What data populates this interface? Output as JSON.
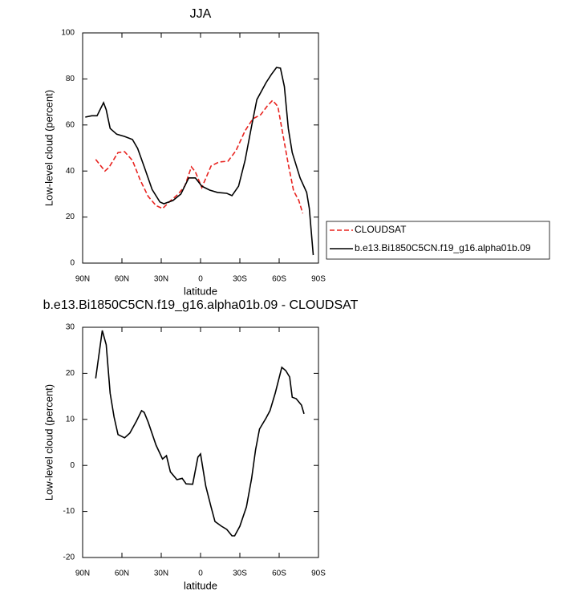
{
  "chart_data": [
    {
      "type": "line",
      "title": "JJA",
      "xlabel": "latitude",
      "ylabel": "Low-level cloud (percent)",
      "xlim": [
        90,
        -90
      ],
      "xticks": [
        {
          "value": 90,
          "label": "90N"
        },
        {
          "value": 60,
          "label": "60N"
        },
        {
          "value": 30,
          "label": "30N"
        },
        0,
        {
          "value": -30,
          "label": "30S"
        },
        {
          "value": -60,
          "label": "60S"
        },
        {
          "value": -90,
          "label": "90S"
        }
      ],
      "ylim": [
        0,
        100
      ],
      "yticks": [
        0,
        20,
        40,
        60,
        80,
        100
      ],
      "legend": "outside-lower-right",
      "series": [
        {
          "name": "CLOUDSAT",
          "color": "#e8231f",
          "style": "dashed",
          "x": [
            80,
            73,
            70,
            63,
            58,
            52,
            46,
            40,
            34,
            29,
            23,
            17,
            12,
            7,
            4,
            -1,
            -8,
            -14,
            -21,
            -27,
            -34,
            -40,
            -46,
            -51,
            -55,
            -59,
            -62,
            -67,
            -71,
            -75,
            -78
          ],
          "values": [
            45,
            40,
            41.5,
            48,
            48.4,
            44.6,
            36,
            29,
            25,
            23.7,
            27,
            30,
            33.5,
            41.8,
            39.7,
            32.8,
            42.2,
            43.9,
            44.3,
            48.8,
            57.5,
            62.7,
            64.5,
            68.3,
            70.7,
            68,
            58.5,
            42.9,
            31.4,
            27.2,
            21.6
          ]
        },
        {
          "name": "b.e13.Bi1850C5CN.f19_g16.alpha01b.09",
          "color": "#000000",
          "style": "solid",
          "x": [
            88,
            83,
            79,
            74,
            72,
            69,
            64,
            58,
            52,
            48,
            43,
            37,
            31,
            28,
            21,
            15,
            9,
            4,
            -1,
            -7,
            -13,
            -20,
            -24,
            -29,
            -34,
            -39,
            -43,
            -50,
            -54,
            -58,
            -61,
            -64,
            -67,
            -70,
            -76,
            -81,
            -83,
            -86
          ],
          "values": [
            63.4,
            64,
            64,
            69.7,
            66.6,
            58.5,
            56,
            55,
            53.7,
            49.8,
            41.8,
            32,
            26.5,
            25.8,
            27.2,
            30,
            37,
            37,
            33.4,
            31.7,
            30.7,
            30.3,
            29.3,
            33.4,
            44.6,
            59.6,
            71,
            78.4,
            81.9,
            85,
            84.7,
            76.7,
            58.5,
            48,
            37,
            30.7,
            23.7,
            3.5
          ]
        }
      ]
    },
    {
      "type": "line",
      "title": "b.e13.Bi1850C5CN.f19_g16.alpha01b.09 - CLOUDSAT",
      "xlabel": "latitude",
      "ylabel": "Low-level cloud (percent)",
      "xlim": [
        90,
        -90
      ],
      "xticks": [
        {
          "value": 90,
          "label": "90N"
        },
        {
          "value": 60,
          "label": "60N"
        },
        {
          "value": 30,
          "label": "30N"
        },
        0,
        {
          "value": -30,
          "label": "30S"
        },
        {
          "value": -60,
          "label": "60S"
        },
        {
          "value": -90,
          "label": "90S"
        }
      ],
      "ylim": [
        -20,
        30
      ],
      "yticks": [
        -20,
        -10,
        0,
        10,
        20,
        30
      ],
      "series": [
        {
          "color": "#000000",
          "style": "solid",
          "x": [
            80,
            75,
            72,
            69,
            66,
            63,
            58,
            54,
            49,
            45,
            43,
            40,
            34,
            29,
            26,
            23,
            18,
            14,
            11,
            6,
            2,
            0,
            -4,
            -8,
            -11,
            -16,
            -20,
            -24,
            -26,
            -30,
            -35,
            -39,
            -42,
            -45,
            -50,
            -53,
            -57,
            -62,
            -65,
            -68,
            -70,
            -73,
            -77,
            -79
          ],
          "values": [
            18.9,
            29.3,
            26.2,
            15.7,
            10.5,
            6.7,
            6,
            7,
            9.6,
            11.9,
            11.5,
            9.4,
            4.4,
            1.4,
            2.1,
            -1.4,
            -3.1,
            -2.8,
            -4,
            -4.1,
            1.8,
            2.5,
            -4.5,
            -9,
            -12.2,
            -13.2,
            -13.9,
            -15.3,
            -15.3,
            -13.2,
            -9,
            -2.8,
            3.4,
            7.9,
            10.3,
            11.9,
            15.7,
            21.3,
            20.6,
            19.2,
            14.8,
            14.5,
            13.1,
            11.2
          ]
        }
      ]
    }
  ]
}
